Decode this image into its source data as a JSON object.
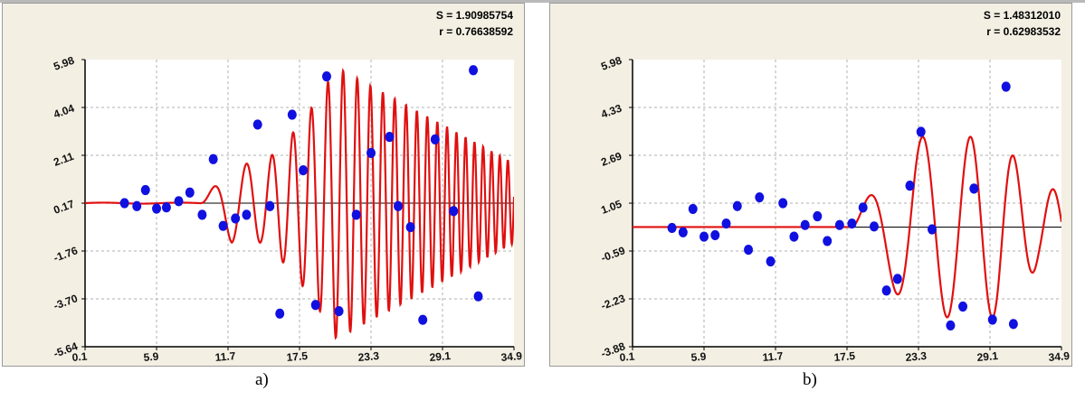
{
  "chart_data": [
    {
      "type": "scatter",
      "panel_label": "a)",
      "stats": [
        "S = 1.90985754",
        "r = 0.76638592"
      ],
      "x_ticks": [
        "0.1",
        "5.9",
        "11.7",
        "17.5",
        "23.3",
        "29.1",
        "34.9"
      ],
      "y_ticks": [
        "5.98",
        "4.04",
        "2.11",
        "0.17",
        "-1.76",
        "-3.70",
        "-5.64"
      ],
      "xlim": [
        0.1,
        34.9
      ],
      "ylim": [
        -5.64,
        5.98
      ],
      "grid": true,
      "baseline_y": 0.17,
      "background": "#f3efe3",
      "point_color": "#1010e0",
      "curve_color": "#e01010",
      "points": [
        [
          3.3,
          0.17
        ],
        [
          4.3,
          0.05
        ],
        [
          5.0,
          0.7
        ],
        [
          5.9,
          -0.05
        ],
        [
          6.7,
          0.0
        ],
        [
          7.7,
          0.25
        ],
        [
          8.6,
          0.6
        ],
        [
          9.6,
          -0.3
        ],
        [
          10.5,
          1.95
        ],
        [
          11.3,
          -0.75
        ],
        [
          12.3,
          -0.45
        ],
        [
          13.2,
          -0.3
        ],
        [
          14.1,
          3.35
        ],
        [
          15.1,
          0.05
        ],
        [
          15.9,
          -4.3
        ],
        [
          16.9,
          3.75
        ],
        [
          17.8,
          1.5
        ],
        [
          18.8,
          -3.95
        ],
        [
          19.7,
          5.3
        ],
        [
          20.7,
          -4.2
        ],
        [
          22.1,
          -0.3
        ],
        [
          23.3,
          2.2
        ],
        [
          24.8,
          2.85
        ],
        [
          25.5,
          0.05
        ],
        [
          26.5,
          -0.8
        ],
        [
          27.5,
          -4.55
        ],
        [
          28.5,
          2.75
        ],
        [
          30.0,
          -0.15
        ],
        [
          31.6,
          5.55
        ],
        [
          32.0,
          -3.6
        ]
      ],
      "curve": {
        "amplitude": 5.0,
        "center": 20.5,
        "width": 3.4,
        "period_start": 4.8,
        "period_end": 1.0,
        "phase_start": 11.0
      }
    },
    {
      "type": "scatter",
      "panel_label": "b)",
      "stats": [
        "S = 1.48312010",
        "r = 0.62983532"
      ],
      "x_ticks": [
        "0.1",
        "5.9",
        "11.7",
        "17.5",
        "23.3",
        "29.1",
        "34.9"
      ],
      "y_ticks": [
        "5.98",
        "4.33",
        "2.69",
        "1.05",
        "-0.59",
        "-2.23",
        "-3.88"
      ],
      "xlim": [
        0.1,
        34.9
      ],
      "ylim": [
        -3.88,
        5.98
      ],
      "grid": true,
      "baseline_y": 0.23,
      "background": "#f3efe3",
      "point_color": "#1010e0",
      "curve_color": "#e01010",
      "points": [
        [
          3.3,
          0.2
        ],
        [
          4.2,
          0.05
        ],
        [
          5.0,
          0.85
        ],
        [
          5.9,
          -0.1
        ],
        [
          6.8,
          -0.05
        ],
        [
          7.7,
          0.35
        ],
        [
          8.6,
          0.95
        ],
        [
          9.5,
          -0.55
        ],
        [
          10.4,
          1.25
        ],
        [
          11.3,
          -0.95
        ],
        [
          12.3,
          1.05
        ],
        [
          13.2,
          -0.1
        ],
        [
          14.1,
          0.3
        ],
        [
          15.1,
          0.6
        ],
        [
          15.9,
          -0.25
        ],
        [
          16.9,
          0.3
        ],
        [
          17.9,
          0.35
        ],
        [
          18.8,
          0.9
        ],
        [
          19.7,
          0.25
        ],
        [
          20.7,
          -1.95
        ],
        [
          21.6,
          -1.55
        ],
        [
          22.6,
          1.65
        ],
        [
          23.5,
          3.5
        ],
        [
          24.4,
          0.15
        ],
        [
          25.9,
          -3.15
        ],
        [
          26.9,
          -2.5
        ],
        [
          27.8,
          1.55
        ],
        [
          29.3,
          -2.95
        ],
        [
          30.4,
          5.05
        ],
        [
          31.0,
          -3.1
        ]
      ]
    }
  ]
}
